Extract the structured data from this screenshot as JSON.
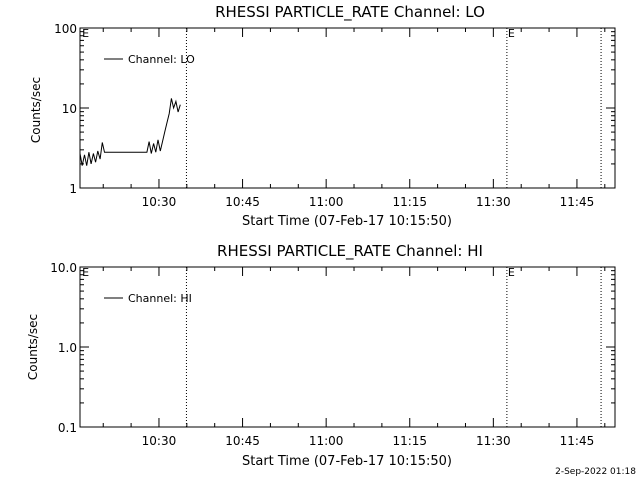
{
  "footer_text": "2-Sep-2022 01:18",
  "chart_data": [
    {
      "type": "line",
      "title": "RHESSI PARTICLE_RATE Channel: LO",
      "xlabel": "Start Time (07-Feb-17 10:15:50)",
      "ylabel": "Counts/sec",
      "x_unit": "minutes since 10:15:50",
      "xlim": [
        0,
        96
      ],
      "ylim": [
        1,
        100
      ],
      "yscale": "log",
      "xticks": [
        {
          "value": 14.17,
          "label": "10:30"
        },
        {
          "value": 29.17,
          "label": "10:45"
        },
        {
          "value": 44.17,
          "label": "11:00"
        },
        {
          "value": 59.17,
          "label": "11:15"
        },
        {
          "value": 74.17,
          "label": "11:30"
        },
        {
          "value": 89.17,
          "label": "11:45"
        }
      ],
      "yticks": [
        {
          "value": 1,
          "label": "1"
        },
        {
          "value": 10,
          "label": "10"
        },
        {
          "value": 100,
          "label": "100"
        }
      ],
      "markers": [
        {
          "x": 0.2,
          "label": "E",
          "line": false
        },
        {
          "x": 19.1,
          "label": "",
          "line": true
        },
        {
          "x": 76.6,
          "label": "E",
          "line": true
        },
        {
          "x": 93.5,
          "label": "",
          "line": true
        }
      ],
      "legend": {
        "position": "top-left",
        "entries": [
          "Channel: LO"
        ]
      },
      "series": [
        {
          "name": "Channel: LO",
          "color": "#000000",
          "x": [
            0,
            0.4,
            0.8,
            1.2,
            1.6,
            2.0,
            2.4,
            2.8,
            3.2,
            3.6,
            4.0,
            4.4,
            5.0,
            5.5,
            6.0,
            7.0,
            8.0,
            9.0,
            10.0,
            11.0,
            12.0,
            12.4,
            12.8,
            13.2,
            13.6,
            14.0,
            14.4,
            14.8,
            15.2,
            15.6,
            16.0,
            16.4,
            16.8,
            17.2,
            17.6,
            18.0
          ],
          "values": [
            2.7,
            1.9,
            2.6,
            1.9,
            2.8,
            2.0,
            2.7,
            2.1,
            2.9,
            2.3,
            3.7,
            2.8,
            2.8,
            2.8,
            2.8,
            2.8,
            2.8,
            2.8,
            2.8,
            2.8,
            2.8,
            3.8,
            2.7,
            3.6,
            2.8,
            4.0,
            2.9,
            3.8,
            5.0,
            6.5,
            8.5,
            13.2,
            10.0,
            12.1,
            8.9,
            11.0
          ]
        }
      ]
    },
    {
      "type": "line",
      "title": "RHESSI PARTICLE_RATE Channel: HI",
      "xlabel": "Start Time (07-Feb-17 10:15:50)",
      "ylabel": "Counts/sec",
      "x_unit": "minutes since 10:15:50",
      "xlim": [
        0,
        96
      ],
      "ylim": [
        0.1,
        10
      ],
      "yscale": "log",
      "xticks": [
        {
          "value": 14.17,
          "label": "10:30"
        },
        {
          "value": 29.17,
          "label": "10:45"
        },
        {
          "value": 44.17,
          "label": "11:00"
        },
        {
          "value": 59.17,
          "label": "11:15"
        },
        {
          "value": 74.17,
          "label": "11:30"
        },
        {
          "value": 89.17,
          "label": "11:45"
        }
      ],
      "yticks": [
        {
          "value": 0.1,
          "label": "0.1"
        },
        {
          "value": 1,
          "label": "1.0"
        },
        {
          "value": 10,
          "label": "10.0"
        }
      ],
      "markers": [
        {
          "x": 0.2,
          "label": "E",
          "line": false
        },
        {
          "x": 19.1,
          "label": "",
          "line": true
        },
        {
          "x": 76.6,
          "label": "E",
          "line": true
        },
        {
          "x": 93.5,
          "label": "",
          "line": true
        }
      ],
      "legend": {
        "position": "top-left",
        "entries": [
          "Channel: HI"
        ]
      },
      "series": [
        {
          "name": "Channel: HI",
          "color": "#000000",
          "x": [],
          "values": []
        }
      ]
    }
  ]
}
